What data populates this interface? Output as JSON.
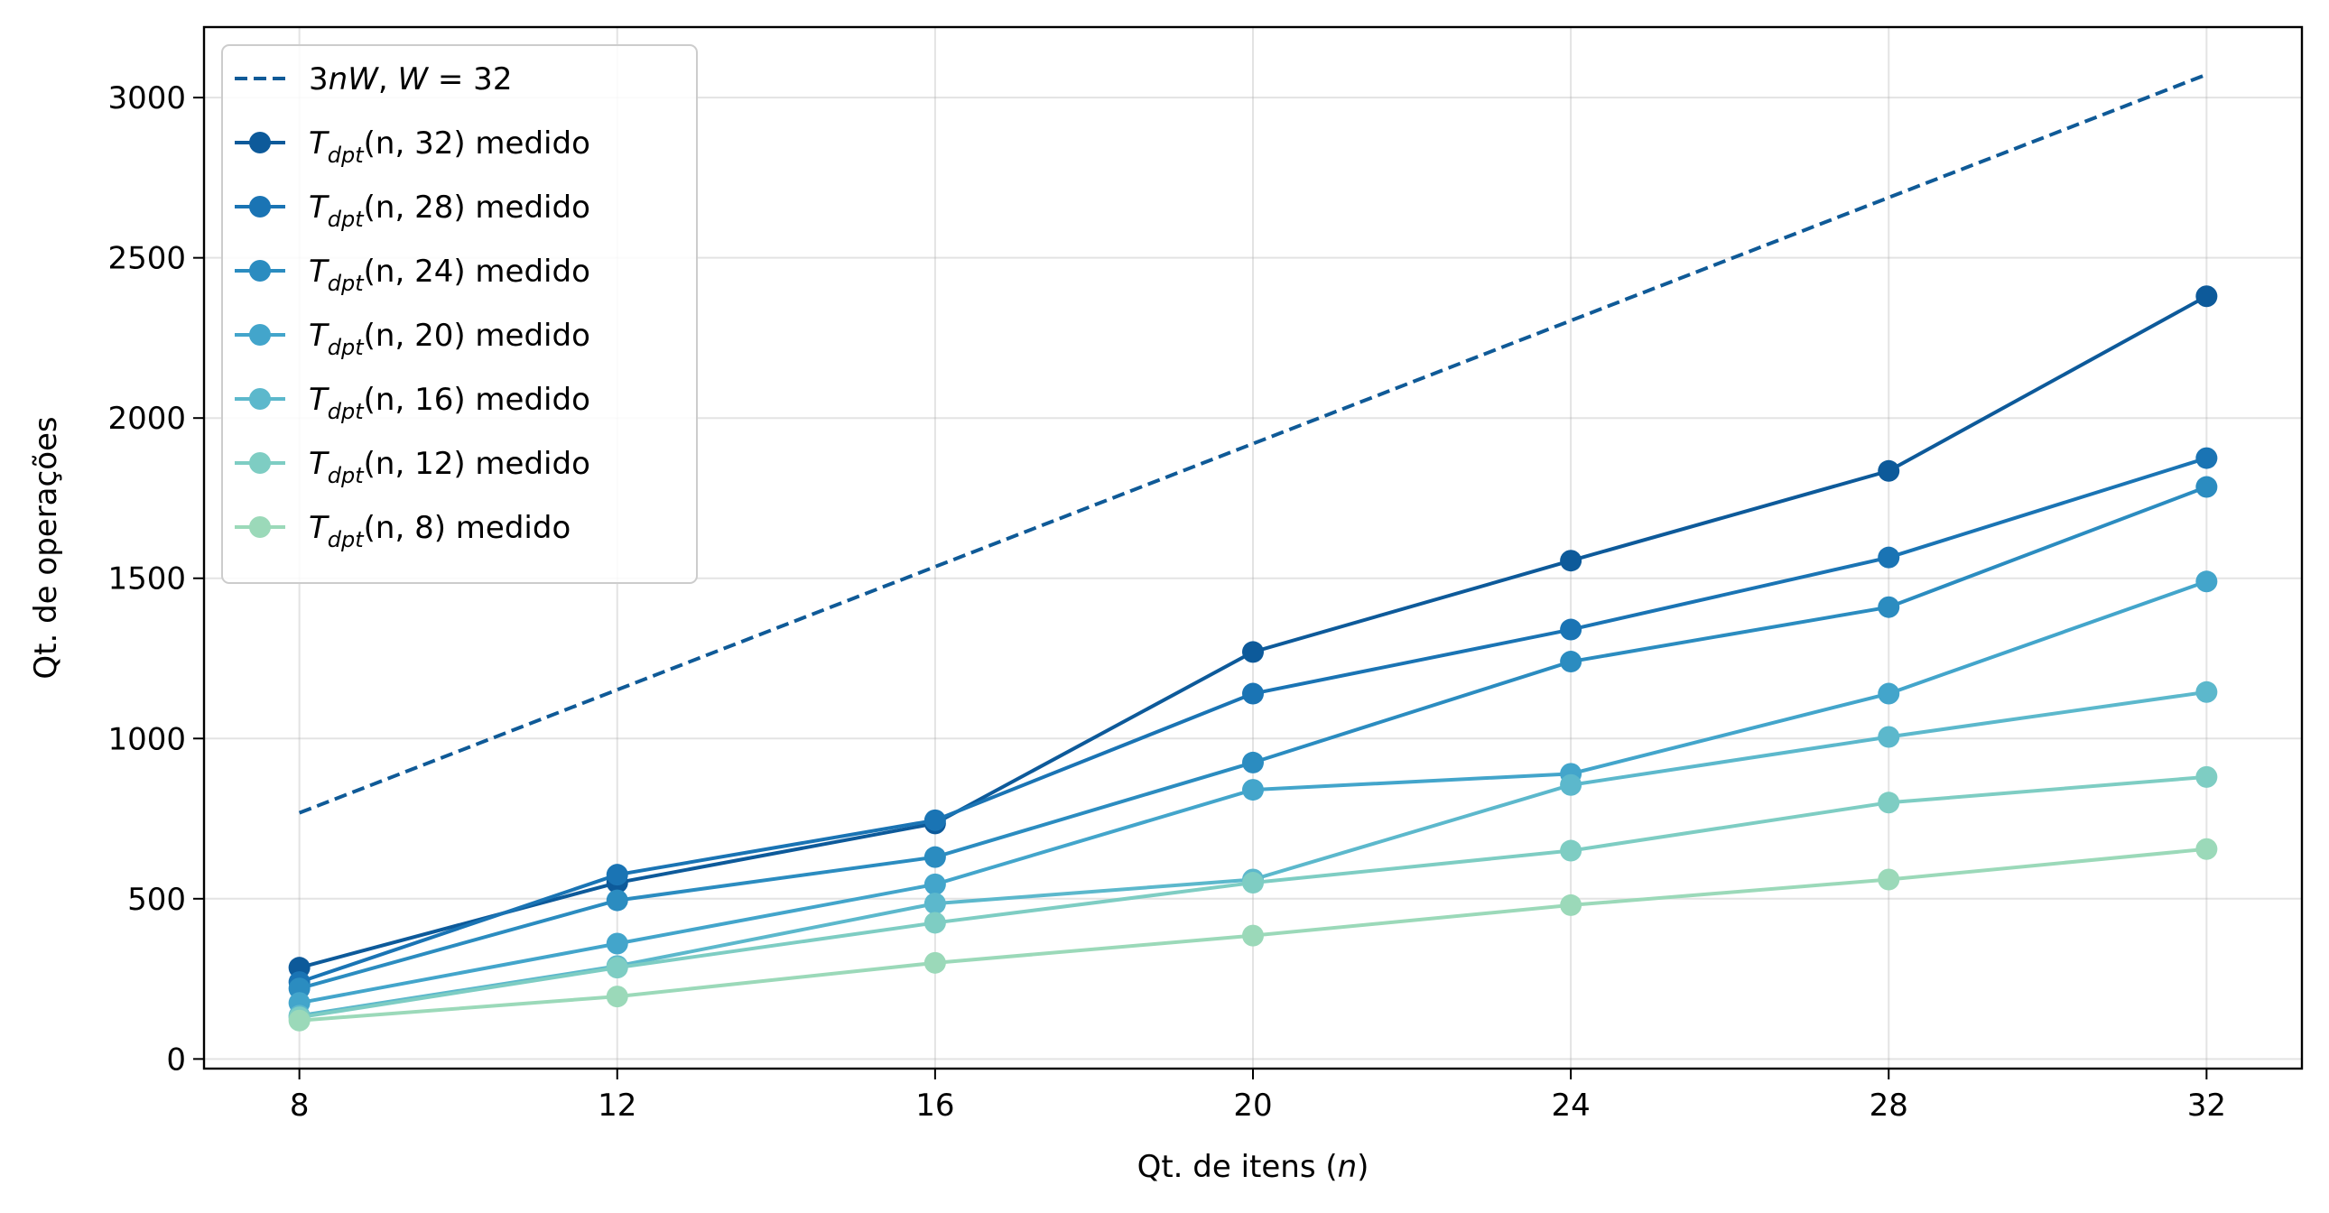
{
  "chart_data": {
    "type": "line",
    "title": "",
    "xlabel": "Qt. de itens (n)",
    "ylabel": "Qt. de operações",
    "x": [
      8,
      12,
      16,
      20,
      24,
      28,
      32
    ],
    "xlim": [
      6.8,
      33.2
    ],
    "ylim": [
      -30,
      3220
    ],
    "xticks": [
      8,
      12,
      16,
      20,
      24,
      28,
      32
    ],
    "yticks": [
      0,
      500,
      1000,
      1500,
      2000,
      2500,
      3000
    ],
    "grid": true,
    "legend_position": "top-left",
    "series": [
      {
        "name": "3nW, W = 32",
        "style": "dashed",
        "color": "#0f5a97",
        "values": [
          768,
          1152,
          1536,
          1920,
          2304,
          2688,
          3072
        ]
      },
      {
        "name": "T_dpt(n, 32) medido",
        "style": "solid-marker",
        "color": "#0d5a9a",
        "values": [
          285,
          550,
          735,
          1270,
          1555,
          1835,
          2380
        ]
      },
      {
        "name": "T_dpt(n, 28) medido",
        "style": "solid-marker",
        "color": "#1a74b4",
        "values": [
          240,
          575,
          745,
          1140,
          1340,
          1565,
          1875
        ]
      },
      {
        "name": "T_dpt(n, 24) medido",
        "style": "solid-marker",
        "color": "#2b8cc0",
        "values": [
          220,
          495,
          630,
          925,
          1240,
          1410,
          1785
        ]
      },
      {
        "name": "T_dpt(n, 20) medido",
        "style": "solid-marker",
        "color": "#43a5cb",
        "values": [
          175,
          360,
          545,
          840,
          890,
          1140,
          1490
        ]
      },
      {
        "name": "T_dpt(n, 16) medido",
        "style": "solid-marker",
        "color": "#5cb8cc",
        "values": [
          135,
          290,
          485,
          560,
          855,
          1005,
          1145
        ]
      },
      {
        "name": "T_dpt(n, 12) medido",
        "style": "solid-marker",
        "color": "#7ecdc3",
        "values": [
          130,
          285,
          425,
          550,
          650,
          800,
          880
        ]
      },
      {
        "name": "T_dpt(n, 8) medido",
        "style": "solid-marker",
        "color": "#9bd9b9",
        "values": [
          120,
          195,
          300,
          385,
          480,
          560,
          655
        ]
      }
    ],
    "legend_labels": {
      "dashed": "3nW, W = 32",
      "measured_suffix": "medido",
      "measured_prefix": "T",
      "measured_subscript": "dpt",
      "measured_args": [
        "(n, 32)",
        "(n, 28)",
        "(n, 24)",
        "(n, 20)",
        "(n, 16)",
        "(n, 12)",
        "(n, 8)"
      ]
    },
    "xlabel_parts": {
      "text": "Qt. de itens (",
      "var": "n",
      "close": ")"
    }
  }
}
